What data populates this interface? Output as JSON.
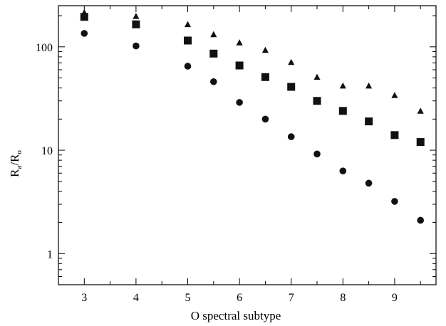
{
  "chart_data": {
    "type": "scatter",
    "xlabel": "O spectral subtype",
    "ylabel": {
      "main": "R",
      "sub1": "a",
      "mid": "/R",
      "sub2": "o"
    },
    "xlim": [
      2.5,
      9.8
    ],
    "ylim": [
      0.5,
      250
    ],
    "yscale": "log",
    "grid": false,
    "x_ticks": [
      3,
      4,
      5,
      6,
      7,
      8,
      9
    ],
    "y_ticks": [
      1,
      10,
      100
    ],
    "series": [
      {
        "marker": "triangle",
        "x": [
          3,
          4,
          5,
          5.5,
          6,
          6.5,
          7,
          7.5,
          8,
          8.5,
          9,
          9.5
        ],
        "values": [
          215,
          198,
          165,
          132,
          110,
          93,
          71,
          51,
          42,
          42,
          34,
          24
        ]
      },
      {
        "marker": "square",
        "x": [
          3,
          4,
          5,
          5.5,
          6,
          6.5,
          7,
          7.5,
          8,
          8.5,
          9,
          9.5
        ],
        "values": [
          195,
          165,
          115,
          86,
          66,
          51,
          41,
          30,
          24,
          19,
          14,
          12
        ]
      },
      {
        "marker": "circle",
        "x": [
          3,
          4,
          5,
          5.5,
          6,
          6.5,
          7,
          7.5,
          8,
          8.5,
          9,
          9.5
        ],
        "values": [
          135,
          102,
          65,
          46,
          29,
          20,
          13.5,
          9.2,
          6.3,
          4.8,
          3.2,
          2.1
        ]
      }
    ],
    "colors": {
      "axis": "#000000",
      "marker": "#111111"
    }
  }
}
